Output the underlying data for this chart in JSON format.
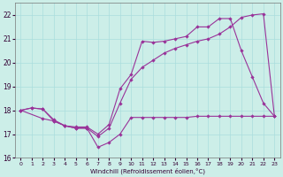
{
  "xlabel": "Windchill (Refroidissement éolien,°C)",
  "background_color": "#cceee8",
  "grid_color": "#aadddd",
  "line_color": "#993399",
  "xlim": [
    -0.5,
    23.5
  ],
  "ylim": [
    16.0,
    22.5
  ],
  "yticks": [
    16,
    17,
    18,
    19,
    20,
    21,
    22
  ],
  "xticks": [
    0,
    1,
    2,
    3,
    4,
    5,
    6,
    7,
    8,
    9,
    10,
    11,
    12,
    13,
    14,
    15,
    16,
    17,
    18,
    19,
    20,
    21,
    22,
    23
  ],
  "s1x": [
    0,
    1,
    2,
    3,
    4,
    5,
    6,
    7,
    8,
    9,
    10,
    11,
    12,
    13,
    14,
    15,
    16,
    17,
    18,
    19,
    20,
    21,
    22,
    23
  ],
  "s1y": [
    18.0,
    18.1,
    18.05,
    17.55,
    17.35,
    17.25,
    17.25,
    16.45,
    16.65,
    17.0,
    17.7,
    17.7,
    17.7,
    17.7,
    17.7,
    17.7,
    17.75,
    17.75,
    17.75,
    17.75,
    17.75,
    17.75,
    17.75,
    17.75
  ],
  "s2x": [
    0,
    2,
    3,
    4,
    5,
    6,
    7,
    8,
    9,
    10,
    11,
    12,
    13,
    14,
    15,
    16,
    17,
    18,
    19,
    20,
    21,
    22,
    23
  ],
  "s2y": [
    18.0,
    17.65,
    17.55,
    17.35,
    17.25,
    17.25,
    16.9,
    17.25,
    18.3,
    19.3,
    19.8,
    20.1,
    20.4,
    20.6,
    20.75,
    20.9,
    21.0,
    21.2,
    21.5,
    21.9,
    22.0,
    22.05,
    17.75
  ],
  "s3x": [
    0,
    1,
    2,
    3,
    4,
    5,
    6,
    7,
    8,
    9,
    10,
    11,
    12,
    13,
    14,
    15,
    16,
    17,
    18,
    19,
    20,
    21,
    22,
    23
  ],
  "s3y": [
    18.0,
    18.1,
    18.05,
    17.6,
    17.35,
    17.3,
    17.3,
    17.0,
    17.4,
    18.9,
    19.5,
    20.9,
    20.85,
    20.9,
    21.0,
    21.1,
    21.5,
    21.5,
    21.85,
    21.85,
    20.5,
    19.4,
    18.3,
    17.75
  ]
}
